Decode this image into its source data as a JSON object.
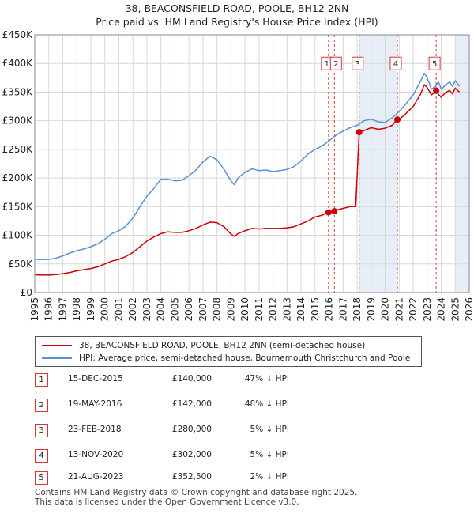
{
  "title": {
    "line1": "38, BEACONSFIELD ROAD, POOLE, BH12 2NN",
    "line2": "Price paid vs. HM Land Registry's House Price Index (HPI)"
  },
  "colors": {
    "property": "#cc0000",
    "hpi": "#5b8fd2",
    "shade": "#e8eef8",
    "grid": "#d8d8d8",
    "marker_line": "#d33"
  },
  "chart_data": {
    "type": "line",
    "title": "38, BEACONSFIELD ROAD, POOLE, BH12 2NN",
    "subtitle": "Price paid vs. HM Land Registry's House Price Index (HPI)",
    "xlim": [
      1995,
      2026
    ],
    "ylim": [
      0,
      450000
    ],
    "x_ticks": [
      "1995",
      "1996",
      "1997",
      "1998",
      "1999",
      "2000",
      "2001",
      "2002",
      "2003",
      "2004",
      "2005",
      "2006",
      "2007",
      "2008",
      "2009",
      "2010",
      "2011",
      "2012",
      "2013",
      "2014",
      "2015",
      "2016",
      "2017",
      "2018",
      "2019",
      "2020",
      "2021",
      "2022",
      "2023",
      "2024",
      "2025",
      "2026"
    ],
    "y_ticks": [
      {
        "value": 0,
        "label": "£0"
      },
      {
        "value": 50000,
        "label": "£50K"
      },
      {
        "value": 100000,
        "label": "£100K"
      },
      {
        "value": 150000,
        "label": "£150K"
      },
      {
        "value": 200000,
        "label": "£200K"
      },
      {
        "value": 250000,
        "label": "£250K"
      },
      {
        "value": 300000,
        "label": "£300K"
      },
      {
        "value": 350000,
        "label": "£350K"
      },
      {
        "value": 400000,
        "label": "£400K"
      },
      {
        "value": 450000,
        "label": "£450K"
      }
    ],
    "grid": true,
    "legend_position": "below",
    "series": [
      {
        "name": "38, BEACONSFIELD ROAD, POOLE, BH12 2NN (semi-detached house)",
        "x": [
          1995.0,
          1995.5,
          1996.0,
          1996.5,
          1997.0,
          1997.5,
          1998.0,
          1998.5,
          1999.0,
          1999.5,
          2000.0,
          2000.5,
          2001.0,
          2001.5,
          2002.0,
          2002.5,
          2003.0,
          2003.5,
          2004.0,
          2004.5,
          2005.0,
          2005.5,
          2006.0,
          2006.5,
          2007.0,
          2007.5,
          2008.0,
          2008.5,
          2009.0,
          2009.25,
          2009.5,
          2010.0,
          2010.5,
          2011.0,
          2011.5,
          2012.0,
          2012.5,
          2013.0,
          2013.5,
          2014.0,
          2014.5,
          2015.0,
          2015.5,
          2015.96,
          2016.38,
          2016.5,
          2017.0,
          2017.5,
          2017.9,
          2018.15,
          2018.5,
          2019.0,
          2019.5,
          2020.0,
          2020.5,
          2020.87,
          2021.0,
          2021.5,
          2022.0,
          2022.5,
          2022.8,
          2023.0,
          2023.3,
          2023.64,
          2023.8,
          2024.0,
          2024.3,
          2024.6,
          2024.8,
          2025.0,
          2025.3
        ],
        "values": [
          31000,
          30500,
          30500,
          31500,
          33000,
          35000,
          38000,
          40000,
          42000,
          45000,
          50000,
          55000,
          58000,
          63000,
          70000,
          80000,
          90000,
          97000,
          103000,
          106000,
          105000,
          105000,
          108000,
          112000,
          118000,
          123000,
          122000,
          115000,
          102000,
          98000,
          103000,
          108000,
          112000,
          111000,
          112000,
          112000,
          112000,
          113000,
          115000,
          120000,
          125000,
          132000,
          135000,
          140000,
          142000,
          144000,
          147000,
          150000,
          150000,
          280000,
          283000,
          288000,
          285000,
          287000,
          292000,
          302000,
          302000,
          313000,
          325000,
          345000,
          363000,
          358000,
          345000,
          352500,
          346000,
          341000,
          349000,
          353000,
          347000,
          357000,
          350000
        ]
      },
      {
        "name": "HPI: Average price, semi-detached house, Bournemouth Christchurch and Poole",
        "x": [
          1995.0,
          1995.5,
          1996.0,
          1996.5,
          1997.0,
          1997.5,
          1998.0,
          1998.5,
          1999.0,
          1999.5,
          2000.0,
          2000.5,
          2001.0,
          2001.5,
          2002.0,
          2002.5,
          2003.0,
          2003.5,
          2004.0,
          2004.5,
          2005.0,
          2005.5,
          2006.0,
          2006.5,
          2007.0,
          2007.5,
          2008.0,
          2008.5,
          2009.0,
          2009.25,
          2009.5,
          2010.0,
          2010.5,
          2011.0,
          2011.5,
          2012.0,
          2012.5,
          2013.0,
          2013.5,
          2014.0,
          2014.5,
          2015.0,
          2015.5,
          2016.0,
          2016.5,
          2017.0,
          2017.5,
          2018.0,
          2018.5,
          2019.0,
          2019.5,
          2020.0,
          2020.5,
          2021.0,
          2021.5,
          2022.0,
          2022.5,
          2022.8,
          2023.0,
          2023.3,
          2023.6,
          2023.8,
          2024.0,
          2024.3,
          2024.6,
          2024.8,
          2025.0,
          2025.3
        ],
        "values": [
          58000,
          57500,
          58000,
          60000,
          64000,
          69000,
          73000,
          76000,
          80000,
          85000,
          93000,
          103000,
          108000,
          116000,
          130000,
          150000,
          168000,
          182000,
          198000,
          198000,
          195000,
          196000,
          204000,
          214000,
          228000,
          238000,
          232000,
          215000,
          195000,
          188000,
          200000,
          210000,
          216000,
          213000,
          214000,
          211000,
          213000,
          215000,
          220000,
          230000,
          242000,
          250000,
          256000,
          265000,
          275000,
          282000,
          288000,
          292000,
          300000,
          303000,
          298000,
          297000,
          305000,
          316000,
          330000,
          345000,
          368000,
          383000,
          375000,
          355000,
          360000,
          368000,
          355000,
          362000,
          368000,
          360000,
          370000,
          360000
        ]
      }
    ],
    "sale_markers": [
      {
        "label": "1",
        "x": 2015.96,
        "value": 140000
      },
      {
        "label": "2",
        "x": 2016.38,
        "value": 142000
      },
      {
        "label": "3",
        "x": 2018.15,
        "value": 280000
      },
      {
        "label": "4",
        "x": 2020.87,
        "value": 302000
      },
      {
        "label": "5",
        "x": 2023.64,
        "value": 352500
      }
    ],
    "shaded_periods": [
      [
        2018.15,
        2020.87
      ],
      [
        2025.0,
        2026.0
      ]
    ]
  },
  "legend": {
    "items": [
      {
        "label": "38, BEACONSFIELD ROAD, POOLE, BH12 2NN (semi-detached house)"
      },
      {
        "label": "HPI: Average price, semi-detached house, Bournemouth Christchurch and Poole"
      }
    ]
  },
  "sales": [
    {
      "num": "1",
      "date": "15-DEC-2015",
      "price": "£140,000",
      "hpi": "47% ↓ HPI"
    },
    {
      "num": "2",
      "date": "19-MAY-2016",
      "price": "£142,000",
      "hpi": "48% ↓ HPI"
    },
    {
      "num": "3",
      "date": "23-FEB-2018",
      "price": "£280,000",
      "hpi": "5% ↓ HPI"
    },
    {
      "num": "4",
      "date": "13-NOV-2020",
      "price": "£302,000",
      "hpi": "5% ↓ HPI"
    },
    {
      "num": "5",
      "date": "21-AUG-2023",
      "price": "£352,500",
      "hpi": "2% ↓ HPI"
    }
  ],
  "footer": {
    "line1": "Contains HM Land Registry data © Crown copyright and database right 2025.",
    "line2": "This data is licensed under the Open Government Licence v3.0."
  }
}
